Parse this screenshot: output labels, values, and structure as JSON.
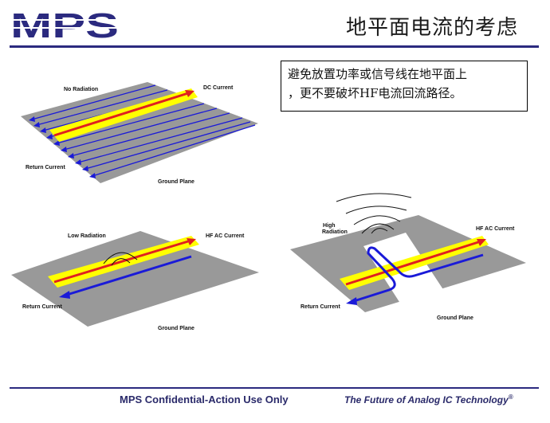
{
  "header": {
    "logo_text": "MPS",
    "title": "地平面电流的考虑"
  },
  "note": {
    "lines": [
      "避免放置功率或信号线在地平面上",
      "，更不要破坏HF电流回流路径。"
    ]
  },
  "diagram1": {
    "no_radiation": "No Radiation",
    "dc_current": "DC Current",
    "return_current": "Return Current",
    "ground_plane": "Ground Plane"
  },
  "diagram2": {
    "low_radiation": "Low Radiation",
    "hf_ac_current": "HF AC Current",
    "return_current": "Return Current",
    "ground_plane": "Ground Plane"
  },
  "diagram3": {
    "high": "High",
    "radiation": "Radiation",
    "hf_ac_current": "HF AC Current",
    "return_current": "Return Current",
    "ground_plane": "Ground Plane"
  },
  "footer": {
    "left": "MPS Confidential-Action Use Only",
    "right": "The Future of Analog IC Technology",
    "right_mark": "®"
  },
  "colors": {
    "navy": "#2b2a7f",
    "ground": "#999999",
    "trace": "#ffff00",
    "signal": "#e02020",
    "return": "#1a1ad8"
  }
}
